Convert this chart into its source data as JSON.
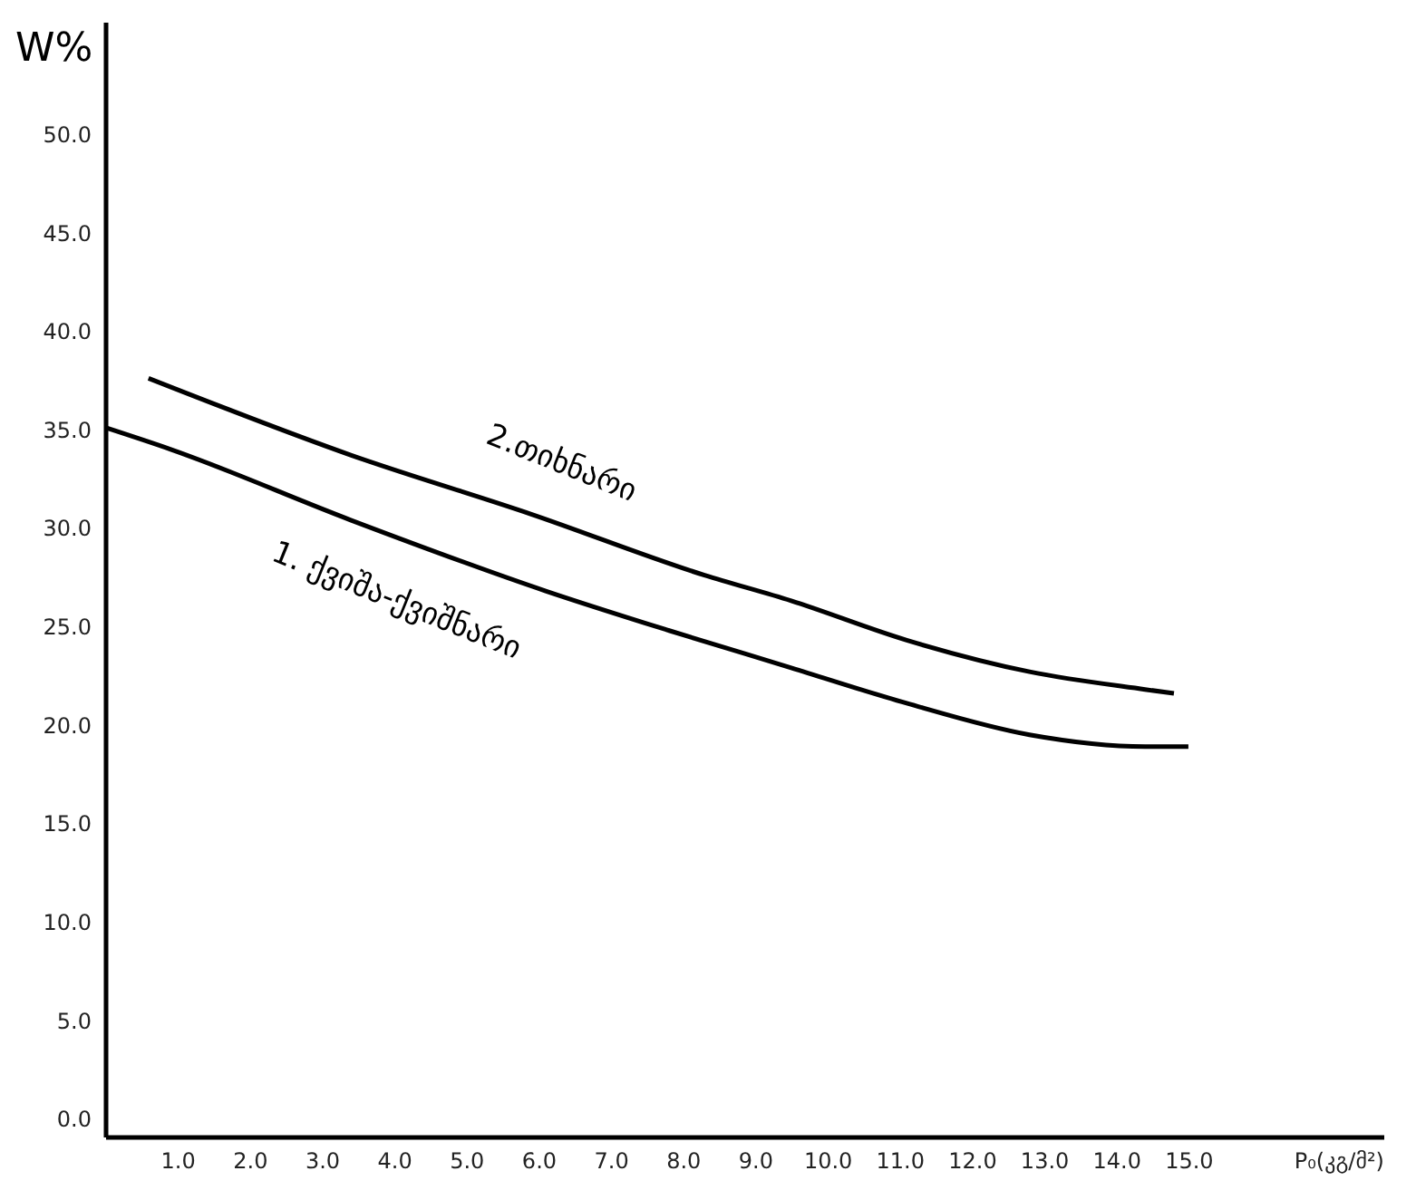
{
  "chart_data": {
    "type": "line",
    "xlabel": "P₀(კგ/მ²)",
    "ylabel": "W%",
    "xlim": [
      0,
      17.7
    ],
    "ylim": [
      -0.9,
      55.7
    ],
    "xticks": [
      {
        "value": 1,
        "label": "1.0"
      },
      {
        "value": 2,
        "label": "2.0"
      },
      {
        "value": 3,
        "label": "3.0"
      },
      {
        "value": 4,
        "label": "4.0"
      },
      {
        "value": 5,
        "label": "5.0"
      },
      {
        "value": 6,
        "label": "6.0"
      },
      {
        "value": 7,
        "label": "7.0"
      },
      {
        "value": 8,
        "label": "8.0"
      },
      {
        "value": 9,
        "label": "9.0"
      },
      {
        "value": 10,
        "label": "10.0"
      },
      {
        "value": 11,
        "label": "11.0"
      },
      {
        "value": 12,
        "label": "12.0"
      },
      {
        "value": 13,
        "label": "13.0"
      },
      {
        "value": 14,
        "label": "14.0"
      },
      {
        "value": 15,
        "label": "15.0"
      }
    ],
    "yticks": [
      {
        "value": 0,
        "label": "0.0"
      },
      {
        "value": 5,
        "label": "5.0"
      },
      {
        "value": 10,
        "label": "10.0"
      },
      {
        "value": 15,
        "label": "15.0"
      },
      {
        "value": 20,
        "label": "20.0"
      },
      {
        "value": 25,
        "label": "25.0"
      },
      {
        "value": 30,
        "label": "30.0"
      },
      {
        "value": 35,
        "label": "35.0"
      },
      {
        "value": 40,
        "label": "40.0"
      },
      {
        "value": 45,
        "label": "45.0"
      },
      {
        "value": 50,
        "label": "50.0"
      }
    ],
    "grid": false,
    "legend": false,
    "marker": "none",
    "line_style": "solid",
    "series": [
      {
        "name": "1. ქვიშა-ქვიშნარი",
        "color": "#000000",
        "x": [
          0,
          0.9,
          3.4,
          6.1,
          7.8,
          9.5,
          11.1,
          12.8,
          14.4,
          15.0
        ],
        "values": [
          35.1,
          34.0,
          30.4,
          26.8,
          24.8,
          22.9,
          21.1,
          19.5,
          18.9,
          18.9
        ]
      },
      {
        "name": "2.თიხნარი",
        "color": "#000000",
        "x": [
          0.6,
          3.4,
          5.9,
          8.3,
          9.5,
          11.1,
          12.8,
          14.4,
          14.8
        ],
        "values": [
          37.6,
          33.7,
          30.7,
          27.6,
          26.3,
          24.3,
          22.7,
          21.8,
          21.6
        ]
      }
    ]
  }
}
